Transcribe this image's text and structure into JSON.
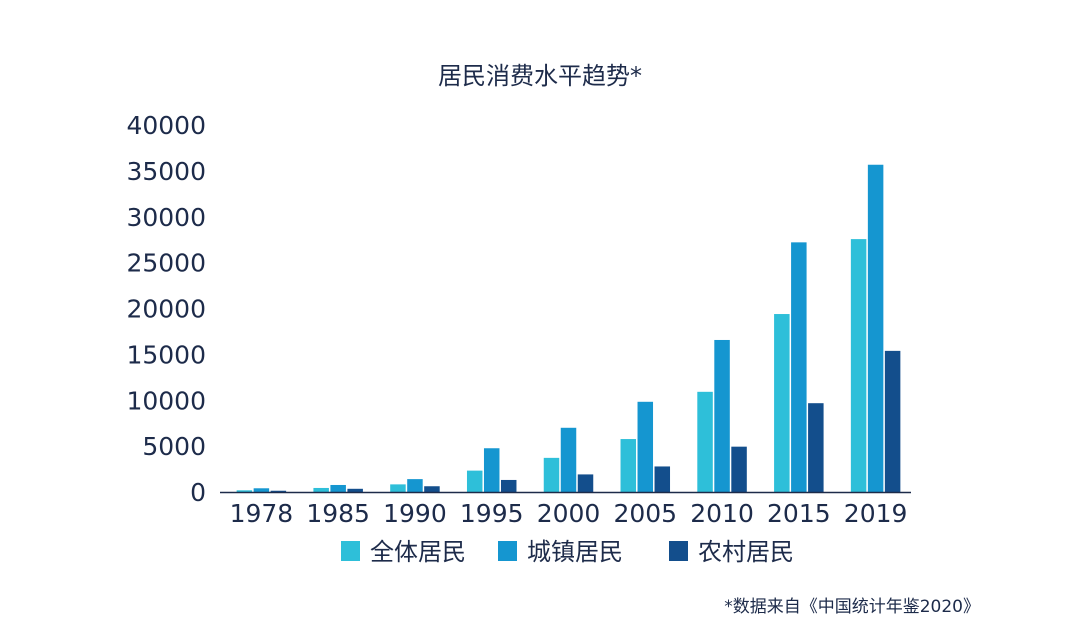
{
  "chart_data": {
    "type": "bar",
    "title": "居民消费水平趋势*",
    "xlabel": "",
    "ylabel": "",
    "ylim": [
      0,
      40000
    ],
    "yticks": [
      0,
      5000,
      10000,
      15000,
      20000,
      25000,
      30000,
      35000,
      40000
    ],
    "grid": false,
    "legend_position": "bottom",
    "categories": [
      "1978",
      "1985",
      "1990",
      "1995",
      "2000",
      "2005",
      "2010",
      "2015",
      "2019"
    ],
    "series": [
      {
        "name": "全体居民",
        "color": "#2ebfd9",
        "values": [
          184,
          440,
          831,
          2330,
          3721,
          5771,
          10919,
          19397,
          27563
        ]
      },
      {
        "name": "城镇居民",
        "color": "#1596d0",
        "values": [
          405,
          765,
          1404,
          4769,
          6999,
          9832,
          16570,
          27210,
          35668
        ]
      },
      {
        "name": "农村居民",
        "color": "#134e8c",
        "values": [
          138,
          349,
          627,
          1313,
          1917,
          2784,
          4941,
          9679,
          15382
        ]
      }
    ],
    "footnote": "*数据来自《中国统计年鉴2020》"
  }
}
